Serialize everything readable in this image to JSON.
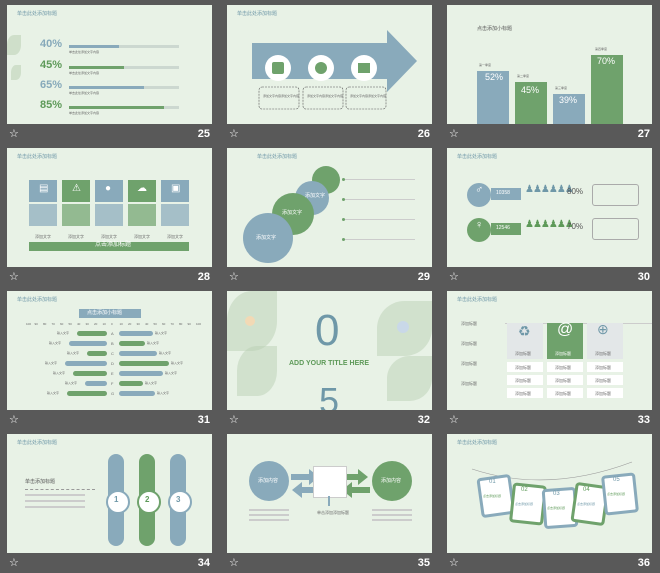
{
  "slides": [
    {
      "number": "25",
      "title": "单击此处添加标题",
      "percents": [
        "40%",
        "45%",
        "65%",
        "85%"
      ],
      "desc": "单击此处添加文字内容"
    },
    {
      "number": "26",
      "title": "单击此处添加标题",
      "desc": "添加文字内容添加文字内容"
    },
    {
      "number": "27",
      "title": "点击添加小标题",
      "bar_labels": [
        "52%",
        "45%",
        "39%",
        "70%"
      ],
      "bar_captions": [
        "第一季度",
        "第二季度",
        "第三季度",
        "第四季度"
      ]
    },
    {
      "number": "28",
      "title": "单击此处添加标题",
      "caption": "添加文字",
      "banner": "点击添加标题"
    },
    {
      "number": "29",
      "title": "单击此处添加标题",
      "circle_label": "添加文字"
    },
    {
      "number": "30",
      "title": "单击此处添加标题",
      "values": [
        "10358",
        "12546"
      ],
      "percents": [
        "80%",
        "70%"
      ]
    },
    {
      "number": "31",
      "title": "单击此处添加标题",
      "subtitle": "点击添加小标题",
      "axis_ticks": [
        "100",
        "90",
        "80",
        "70",
        "60",
        "50",
        "40",
        "30",
        "20",
        "10",
        "0",
        "10",
        "20",
        "30",
        "40",
        "50",
        "60",
        "70",
        "80",
        "90",
        "100"
      ],
      "rows": [
        "A",
        "B",
        "C",
        "D",
        "E",
        "F",
        "G"
      ],
      "input": "输入文字"
    },
    {
      "number": "32",
      "big0": "0",
      "big5": "5",
      "headline": "ADD YOUR TITLE HERE"
    },
    {
      "number": "33",
      "title": "单击此处添加标题",
      "label": "添加标题",
      "cell": "添加标题",
      "col_captions": [
        "添加标题",
        "添加标题",
        "添加标题"
      ]
    },
    {
      "number": "34",
      "title": "单击此处添加标题",
      "left_title": "单击添加标题",
      "nums": [
        "1",
        "2",
        "3"
      ]
    },
    {
      "number": "35",
      "left_circle": "添加内容",
      "right_circle": "添加内容",
      "center_caption": "单击添加添加标题"
    },
    {
      "number": "36",
      "title": "单击此处添加标题",
      "tags": [
        "01",
        "02",
        "03",
        "04",
        "05"
      ],
      "tag_text": "点击添加标题"
    }
  ],
  "colors": {
    "blue": "#89aabb",
    "green": "#6fa26c",
    "slide_bg": "#e8f2e6",
    "page_bg": "#595959"
  }
}
